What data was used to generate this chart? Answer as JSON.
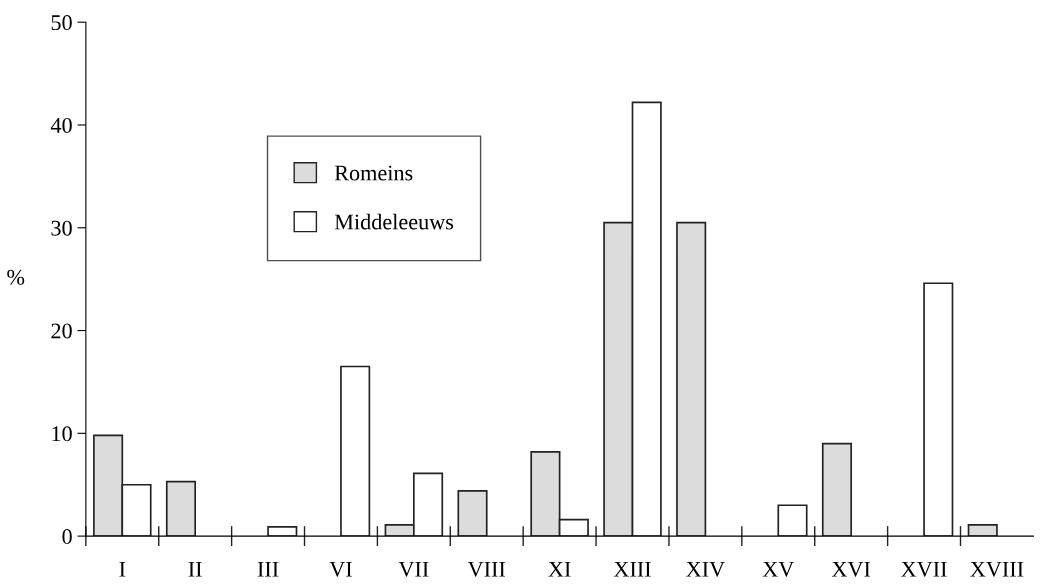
{
  "chart_data": {
    "type": "bar",
    "ylabel": "%",
    "categories": [
      "I",
      "II",
      "III",
      "VI",
      "VII",
      "VIII",
      "XI",
      "XIII",
      "XIV",
      "XV",
      "XVI",
      "XVII",
      "XVIII"
    ],
    "series": [
      {
        "name": "Romeins",
        "color": "#dcdcdc",
        "values": [
          9.8,
          5.3,
          null,
          null,
          1.1,
          4.4,
          8.2,
          30.5,
          30.5,
          null,
          9.0,
          null,
          1.1
        ]
      },
      {
        "name": "Middeleeuws",
        "color": "#ffffff",
        "values": [
          5.0,
          null,
          0.9,
          16.5,
          6.1,
          null,
          1.6,
          42.2,
          null,
          3.0,
          null,
          24.6,
          null
        ]
      }
    ],
    "ylim": [
      0,
      50
    ],
    "yticks": [
      0,
      10,
      20,
      30,
      40,
      50
    ],
    "grid": false,
    "legend": "top left"
  }
}
